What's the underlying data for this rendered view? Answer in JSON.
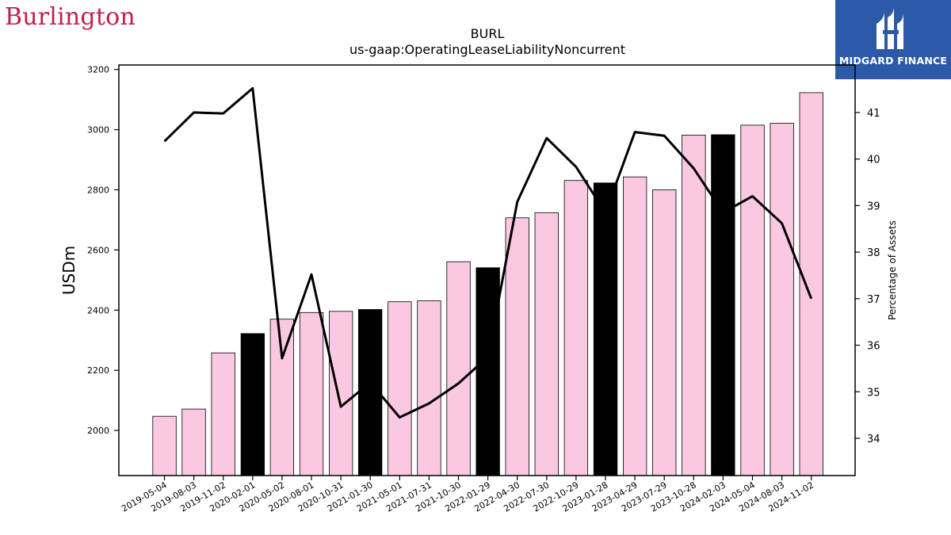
{
  "brand": {
    "name": "Burlington"
  },
  "badge": {
    "name": "MIDGARD FINANCE"
  },
  "chart_data": {
    "type": "bar",
    "title": "BURL",
    "subtitle": "us-gaap:OperatingLeaseLiabilityNoncurrent",
    "ylabel": "USDm",
    "y2label": "Percentage of Assets",
    "ylim": [
      1850,
      3215
    ],
    "y2lim": [
      33.2,
      42.02
    ],
    "yticks": [
      2000,
      2200,
      2400,
      2600,
      2800,
      3000,
      3200
    ],
    "y2ticks": [
      34,
      35,
      36,
      37,
      38,
      39,
      40,
      41
    ],
    "categories": [
      "2019-05-04",
      "2019-08-03",
      "2019-11-02",
      "2020-02-01",
      "2020-05-02",
      "2020-08-01",
      "2020-10-31",
      "2021-01-30",
      "2021-05-01",
      "2021-07-31",
      "2021-10-30",
      "2022-01-29",
      "2022-04-30",
      "2022-07-30",
      "2022-10-29",
      "2023-01-28",
      "2023-04-29",
      "2023-07-29",
      "2023-10-28",
      "2024-02-03",
      "2024-05-04",
      "2024-08-03",
      "2024-11-02"
    ],
    "series": [
      {
        "type": "bar",
        "axis": "left",
        "values": [
          2047,
          2071,
          2258,
          2322,
          2370,
          2392,
          2396,
          2402,
          2428,
          2431,
          2561,
          2541,
          2707,
          2724,
          2831,
          2823,
          2843,
          2800,
          2982,
          2983,
          3015,
          3021,
          3123
        ]
      },
      {
        "type": "line",
        "axis": "right",
        "values": [
          40.38,
          41.0,
          40.98,
          41.52,
          35.72,
          37.52,
          34.68,
          35.2,
          34.45,
          34.75,
          35.18,
          35.75,
          39.08,
          40.45,
          39.83,
          38.85,
          40.58,
          40.5,
          39.8,
          38.85,
          39.2,
          38.62,
          37.0
        ]
      }
    ],
    "bar_colors": [
      "#fbc8e1",
      "#fbc8e1",
      "#fbc8e1",
      "#000000",
      "#fbc8e1",
      "#fbc8e1",
      "#fbc8e1",
      "#000000",
      "#fbc8e1",
      "#fbc8e1",
      "#fbc8e1",
      "#000000",
      "#fbc8e1",
      "#fbc8e1",
      "#fbc8e1",
      "#000000",
      "#fbc8e1",
      "#fbc8e1",
      "#fbc8e1",
      "#000000",
      "#fbc8e1",
      "#fbc8e1",
      "#fbc8e1"
    ],
    "line_color": "#000000",
    "grid": false,
    "legend": "none"
  }
}
